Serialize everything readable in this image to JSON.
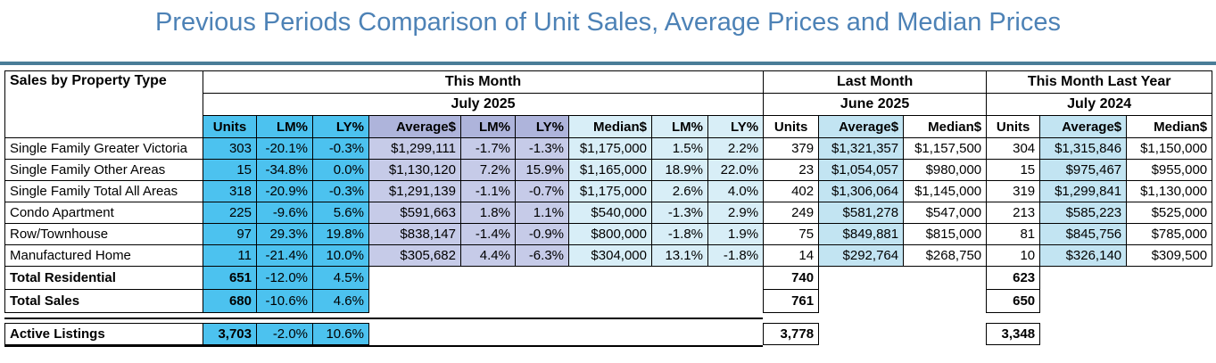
{
  "title": "Previous Periods Comparison of Unit Sales, Average Prices and Median Prices",
  "table": {
    "corner_label": "Sales by Property Type",
    "sections": [
      {
        "label": "This Month",
        "sublabel": "July 2025"
      },
      {
        "label": "Last Month",
        "sublabel": "June 2025"
      },
      {
        "label": "This Month Last Year",
        "sublabel": "July 2024"
      }
    ],
    "columns": [
      "Units",
      "LM%",
      "LY%",
      "Average$",
      "LM%",
      "LY%",
      "Median$",
      "LM%",
      "LY%",
      "Units",
      "Average$",
      "Median$",
      "Units",
      "Average$",
      "Median$"
    ],
    "rows": [
      {
        "label": "Single Family Greater Victoria",
        "values": [
          "303",
          "-20.1%",
          "-0.3%",
          "$1,299,111",
          "-1.7%",
          "-1.3%",
          "$1,175,000",
          "1.5%",
          "2.2%",
          "379",
          "$1,321,357",
          "$1,157,500",
          "304",
          "$1,315,846",
          "$1,150,000"
        ]
      },
      {
        "label": "Single Family Other Areas",
        "values": [
          "15",
          "-34.8%",
          "0.0%",
          "$1,130,120",
          "7.2%",
          "15.9%",
          "$1,165,000",
          "18.9%",
          "22.0%",
          "23",
          "$1,054,057",
          "$980,000",
          "15",
          "$975,467",
          "$955,000"
        ]
      },
      {
        "label": "Single Family Total All Areas",
        "values": [
          "318",
          "-20.9%",
          "-0.3%",
          "$1,291,139",
          "-1.1%",
          "-0.7%",
          "$1,175,000",
          "2.6%",
          "4.0%",
          "402",
          "$1,306,064",
          "$1,145,000",
          "319",
          "$1,299,841",
          "$1,130,000"
        ]
      },
      {
        "label": "Condo Apartment",
        "values": [
          "225",
          "-9.6%",
          "5.6%",
          "$591,663",
          "1.8%",
          "1.1%",
          "$540,000",
          "-1.3%",
          "2.9%",
          "249",
          "$581,278",
          "$547,000",
          "213",
          "$585,223",
          "$525,000"
        ]
      },
      {
        "label": "Row/Townhouse",
        "values": [
          "97",
          "29.3%",
          "19.8%",
          "$838,147",
          "-1.4%",
          "-0.9%",
          "$800,000",
          "-1.8%",
          "1.9%",
          "75",
          "$849,881",
          "$815,000",
          "81",
          "$845,756",
          "$785,000"
        ]
      },
      {
        "label": "Manufactured Home",
        "values": [
          "11",
          "-21.4%",
          "10.0%",
          "$305,682",
          "4.4%",
          "-6.3%",
          "$304,000",
          "13.1%",
          "-1.8%",
          "14",
          "$292,764",
          "$268,750",
          "10",
          "$326,140",
          "$309,500"
        ]
      }
    ],
    "totals": [
      {
        "label": "Total Residential",
        "units": "651",
        "lm_pct": "-12.0%",
        "ly_pct": "4.5%",
        "last_month_units": "740",
        "last_year_units": "623"
      },
      {
        "label": "Total Sales",
        "units": "680",
        "lm_pct": "-10.6%",
        "ly_pct": "4.6%",
        "last_month_units": "761",
        "last_year_units": "650"
      }
    ],
    "active_listings": {
      "label": "Active Listings",
      "units": "3,703",
      "lm_pct": "-2.0%",
      "ly_pct": "10.6%",
      "last_month_units": "3,778",
      "last_year_units": "3,348"
    }
  },
  "colors": {
    "title_text": "#4D82B6",
    "header_rule": "#4A7D98",
    "units_cyan": "#4CC2EF",
    "average_header_lavender": "#AEB4DB",
    "average_cell_lavender": "#C6CBE8",
    "median_light_cyan": "#D8EEF7",
    "average_light_blue": "#C2E4F2",
    "border": "#000000"
  }
}
